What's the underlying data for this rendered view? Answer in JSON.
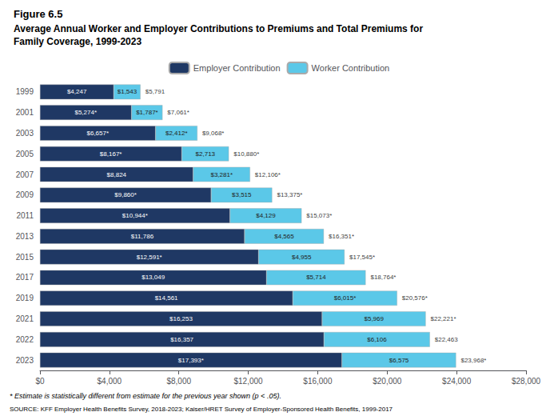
{
  "chart_data": {
    "type": "bar",
    "orientation": "horizontal",
    "stacked": true,
    "data_labels": true,
    "grid": false,
    "legend": "top",
    "title": "Figure 6.5",
    "subtitle": "Average Annual Worker and Employer Contributions to Premiums and Total Premiums for\nFamily Coverage, 1999-2023",
    "categories": [
      "1999",
      "2001",
      "2003",
      "2005",
      "2007",
      "2009",
      "2011",
      "2013",
      "2015",
      "2017",
      "2019",
      "2021",
      "2022",
      "2023"
    ],
    "series": [
      {
        "name": "Employer Contribution",
        "color": "#1F3864",
        "values": [
          4247,
          5274,
          6657,
          8167,
          8824,
          9860,
          10944,
          11786,
          12591,
          13049,
          14561,
          16253,
          16357,
          17393
        ],
        "value_labels": [
          "$4,247",
          "$5,274*",
          "$6,657*",
          "$8,167*",
          "$8,824",
          "$9,860*",
          "$10,944*",
          "$11,786",
          "$12,591*",
          "$13,049",
          "$14,561",
          "$16,253",
          "$16,357",
          "$17,393*"
        ]
      },
      {
        "name": "Worker Contribution",
        "color": "#5BC8E8",
        "values": [
          1543,
          1787,
          2412,
          2713,
          3281,
          3515,
          4129,
          4565,
          4955,
          5714,
          6015,
          5969,
          6106,
          6575
        ],
        "value_labels": [
          "$1,543",
          "$1,787*",
          "$2,412*",
          "$2,713",
          "$3,281*",
          "$3,515",
          "$4,129",
          "$4,565",
          "$4,955",
          "$5,714",
          "$6,015*",
          "$5,969",
          "$6,106",
          "$6,575"
        ]
      }
    ],
    "totals": [
      5791,
      7061,
      9068,
      10880,
      12106,
      13375,
      15073,
      16351,
      17545,
      18764,
      20576,
      22221,
      22463,
      23968
    ],
    "total_labels": [
      "$5,791",
      "$7,061*",
      "$9,068*",
      "$10,880*",
      "$12,106*",
      "$13,375*",
      "$15,073*",
      "$16,351*",
      "$17,545*",
      "$18,764*",
      "$20,576*",
      "$22,221*",
      "$22,463",
      "$23,968*"
    ],
    "xlim": [
      0,
      28000
    ],
    "xticks": [
      {
        "value": 0,
        "label": "$0"
      },
      {
        "value": 4000,
        "label": "$4,000"
      },
      {
        "value": 8000,
        "label": "$8,000"
      },
      {
        "value": 12000,
        "label": "$12,000"
      },
      {
        "value": 16000,
        "label": "$16,000"
      },
      {
        "value": 20000,
        "label": "$20,000"
      },
      {
        "value": 24000,
        "label": "$24,000"
      },
      {
        "value": 28000,
        "label": "$28,000"
      }
    ],
    "annotations": [
      "* Estimate is statistically different from estimate for the previous year shown (p < .05).",
      "SOURCE: KFF Employer Health Benefits Survey, 2018-2023; Kaiser/HRET Survey of Employer-Sponsored Health Benefits, 1999-2017"
    ]
  }
}
